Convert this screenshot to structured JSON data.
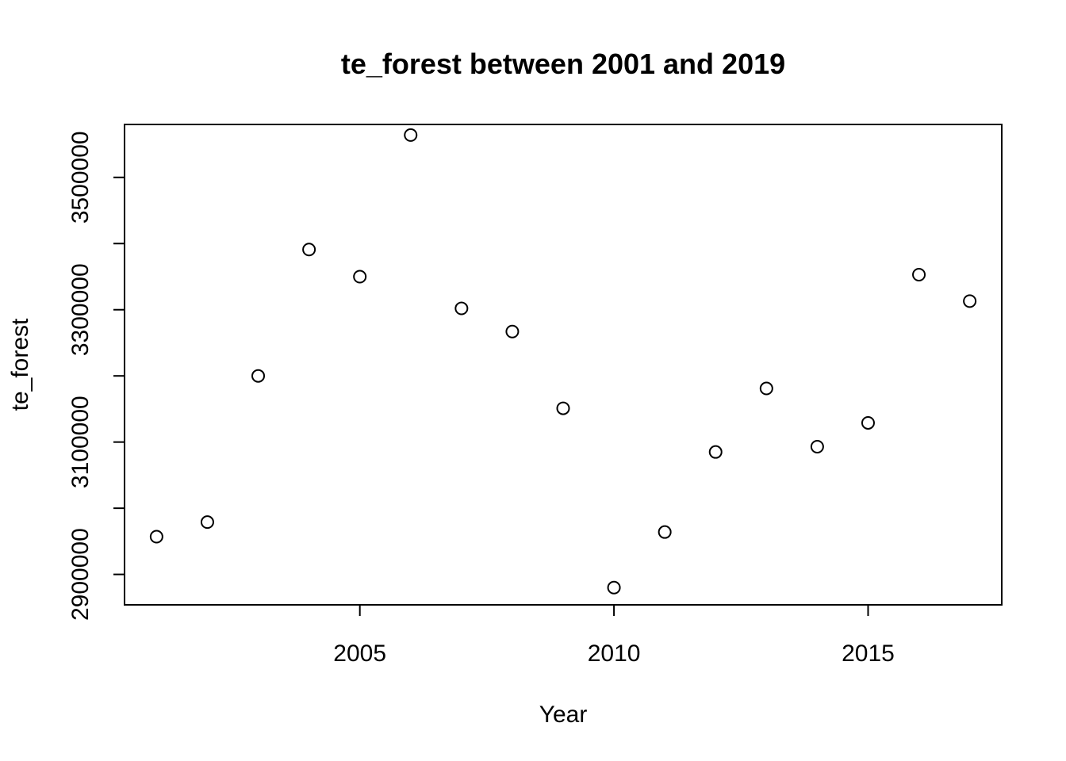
{
  "chart_data": {
    "type": "scatter",
    "title": "te_forest between 2001 and 2019",
    "xlabel": "Year",
    "ylabel": "te_forest",
    "x": [
      2001,
      2002,
      2003,
      2004,
      2005,
      2006,
      2007,
      2008,
      2009,
      2010,
      2011,
      2012,
      2013,
      2014,
      2015,
      2016,
      2017
    ],
    "y": [
      2957000,
      2979000,
      3200000,
      3391000,
      3350000,
      3564000,
      3302000,
      3267000,
      3151000,
      2880000,
      2964000,
      3085000,
      3181000,
      3093000,
      3129000,
      3353000,
      3313000
    ],
    "xlim": [
      2000.37,
      2017.63
    ],
    "ylim": [
      2854000,
      3580000
    ],
    "x_ticks": [
      "2005",
      "2010",
      "2015"
    ],
    "y_ticks": [
      "2900000",
      "3100000",
      "3300000",
      "3500000"
    ],
    "minor_y_ticks": [
      3000000,
      3200000,
      3400000
    ],
    "grid": false,
    "legend": "none",
    "marker": "open-circle",
    "colors": {
      "points": "#000000",
      "axes": "#000000",
      "background": "#ffffff"
    }
  }
}
